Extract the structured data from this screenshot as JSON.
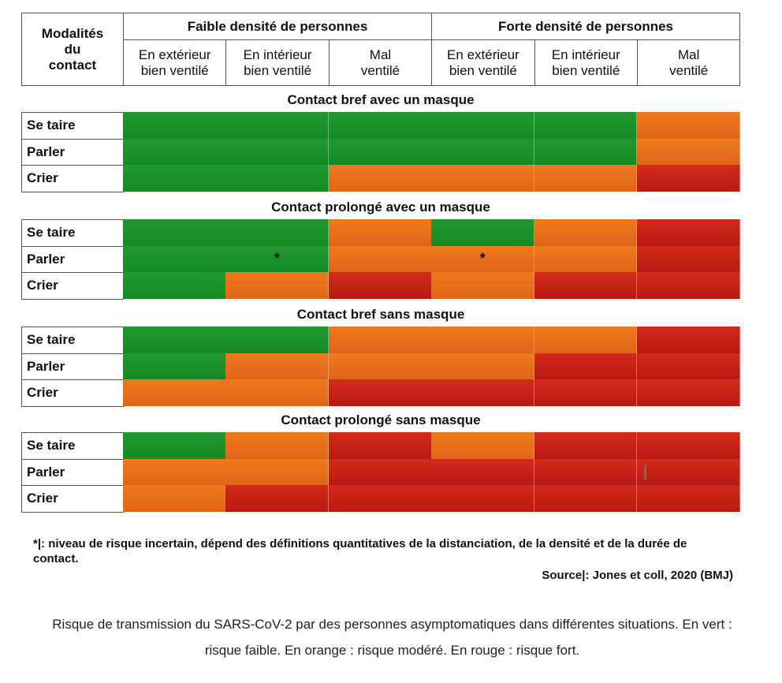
{
  "chart_data": {
    "type": "table",
    "header": {
      "modalites": [
        "Modalités",
        "du",
        "contact"
      ],
      "density_groups": [
        "Faible densité de personnes",
        "Forte densité de personnes"
      ],
      "columns": [
        [
          "En extérieur",
          "bien ventilé"
        ],
        [
          "En intérieur",
          "bien ventilé"
        ],
        [
          "Mal",
          "ventilé"
        ],
        [
          "En extérieur",
          "bien ventilé"
        ],
        [
          "En intérieur",
          "bien ventilé"
        ],
        [
          "Mal",
          "ventilé"
        ]
      ]
    },
    "legend_colors": {
      "low": "#1f9a2e",
      "mod": "#e8701a",
      "high": "#c8221a"
    },
    "groups": [
      {
        "title": "Contact bref avec un masque",
        "rows": [
          {
            "label": "Se taire",
            "cells": [
              "low",
              "low",
              "low",
              "low",
              "low",
              "mod"
            ],
            "marks": [
              "",
              "",
              "",
              "",
              "",
              ""
            ]
          },
          {
            "label": "Parler",
            "cells": [
              "low",
              "low",
              "low",
              "low",
              "low",
              "mod"
            ],
            "marks": [
              "",
              "",
              "",
              "",
              "",
              ""
            ]
          },
          {
            "label": "Crier",
            "cells": [
              "low",
              "low",
              "mod",
              "mod",
              "mod",
              "high"
            ],
            "marks": [
              "",
              "",
              "",
              "",
              "",
              ""
            ]
          }
        ]
      },
      {
        "title": "Contact prolongé avec un masque",
        "rows": [
          {
            "label": "Se taire",
            "cells": [
              "low",
              "low",
              "mod",
              "low",
              "mod",
              "high"
            ],
            "marks": [
              "",
              "",
              "",
              "",
              "",
              ""
            ]
          },
          {
            "label": "Parler",
            "cells": [
              "low",
              "low",
              "mod",
              "mod",
              "mod",
              "high"
            ],
            "marks": [
              "",
              "*",
              "",
              "*",
              "",
              ""
            ]
          },
          {
            "label": "Crier",
            "cells": [
              "low",
              "mod",
              "high",
              "mod",
              "high",
              "high"
            ],
            "marks": [
              "",
              "",
              "",
              "",
              "",
              ""
            ]
          }
        ]
      },
      {
        "title": "Contact bref sans masque",
        "rows": [
          {
            "label": "Se taire",
            "cells": [
              "low",
              "low",
              "mod",
              "mod",
              "mod",
              "high"
            ],
            "marks": [
              "",
              "",
              "",
              "",
              "",
              ""
            ]
          },
          {
            "label": "Parler",
            "cells": [
              "low",
              "mod",
              "mod",
              "mod",
              "high",
              "high"
            ],
            "marks": [
              "",
              "",
              "",
              "",
              "",
              ""
            ]
          },
          {
            "label": "Crier",
            "cells": [
              "mod",
              "mod",
              "high",
              "high",
              "high",
              "high"
            ],
            "marks": [
              "",
              "",
              "",
              "",
              "",
              ""
            ]
          }
        ]
      },
      {
        "title": "Contact prolongé sans masque",
        "rows": [
          {
            "label": "Se taire",
            "cells": [
              "low",
              "mod",
              "high",
              "mod",
              "high",
              "high"
            ],
            "marks": [
              "",
              "",
              "",
              "",
              "",
              ""
            ]
          },
          {
            "label": "Parler",
            "cells": [
              "mod",
              "mod",
              "high",
              "high",
              "high",
              "high"
            ],
            "marks": [
              "",
              "",
              "",
              "",
              "",
              "|"
            ]
          },
          {
            "label": "Crier",
            "cells": [
              "mod",
              "high",
              "high",
              "high",
              "high",
              "high"
            ],
            "marks": [
              "",
              "",
              "",
              "",
              "",
              ""
            ]
          }
        ]
      }
    ],
    "footnote": "*|: niveau de risque incertain, dépend des définitions quantitatives de la distanciation, de la densité et de la durée de contact.",
    "source": "Source|: Jones et coll, 2020 (BMJ)"
  },
  "caption": "Risque de transmission du SARS-CoV-2 par des personnes asymptomatiques dans différentes situations. En vert : risque faible. En orange : risque modéré. En rouge : risque fort."
}
